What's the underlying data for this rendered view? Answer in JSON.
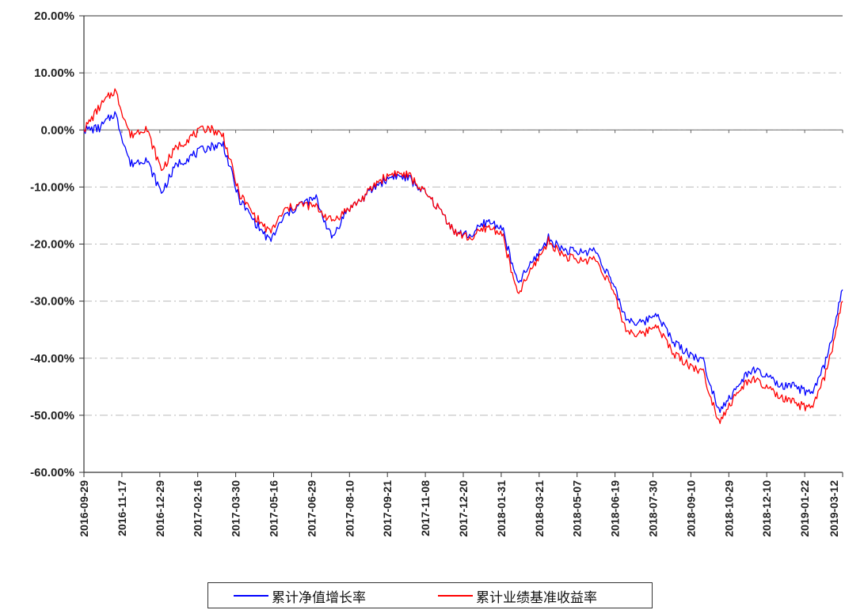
{
  "chart_data": {
    "type": "line",
    "title": "",
    "xlabel": "",
    "ylabel": "",
    "ylim": [
      -60,
      20
    ],
    "y_ticks": [
      "20.00%",
      "10.00%",
      "0.00%",
      "-10.00%",
      "-20.00%",
      "-30.00%",
      "-40.00%",
      "-50.00%",
      "-60.00%"
    ],
    "x_tick_labels": [
      "2016-09-29",
      "2016-11-17",
      "2016-12-29",
      "2017-02-16",
      "2017-03-30",
      "2017-05-16",
      "2017-06-29",
      "2017-08-10",
      "2017-09-21",
      "2017-11-08",
      "2017-12-20",
      "2018-01-31",
      "2018-03-21",
      "2018-05-07",
      "2018-06-19",
      "2018-07-30",
      "2018-09-10",
      "2018-10-29",
      "2018-12-10",
      "2019-01-22",
      "2019-03-12"
    ],
    "grid": "horizontal dashed",
    "legend_position": "bottom",
    "series": [
      {
        "name": "累计净值增长率",
        "color": "#0000ff",
        "values": [
          0.0,
          0.3,
          3.0,
          -6.0,
          -5.0,
          -11.0,
          -6.0,
          -4.5,
          -3.0,
          -2.5,
          -12.0,
          -16.0,
          -19.5,
          -15.0,
          -13.0,
          -12.0,
          -19.0,
          -14.0,
          -12.0,
          -9.5,
          -8.0,
          -8.5,
          -11.0,
          -14.0,
          -18.0,
          -18.5,
          -16.0,
          -17.0,
          -27.0,
          -23.0,
          -19.0,
          -21.0,
          -21.5,
          -21.0,
          -26.0,
          -33.0,
          -34.0,
          -32.0,
          -37.0,
          -39.0,
          -40.5,
          -49.0,
          -46.0,
          -42.0,
          -43.0,
          -45.0,
          -45.0,
          -46.5,
          -40.0,
          -28.0
        ]
      },
      {
        "name": "累计业绩基准收益率",
        "color": "#ff0000",
        "values": [
          0.0,
          4.0,
          7.0,
          -1.0,
          0.5,
          -7.0,
          -3.0,
          -1.0,
          0.5,
          -1.0,
          -11.0,
          -15.0,
          -18.0,
          -14.0,
          -13.0,
          -13.5,
          -16.0,
          -14.0,
          -12.0,
          -9.0,
          -7.5,
          -8.0,
          -11.0,
          -14.0,
          -18.0,
          -19.0,
          -17.0,
          -18.0,
          -29.0,
          -24.0,
          -19.5,
          -22.0,
          -23.0,
          -22.5,
          -27.0,
          -35.0,
          -36.0,
          -34.0,
          -39.0,
          -41.0,
          -42.5,
          -51.0,
          -47.0,
          -43.5,
          -45.0,
          -47.0,
          -48.0,
          -49.0,
          -42.0,
          -30.0
        ]
      }
    ]
  }
}
